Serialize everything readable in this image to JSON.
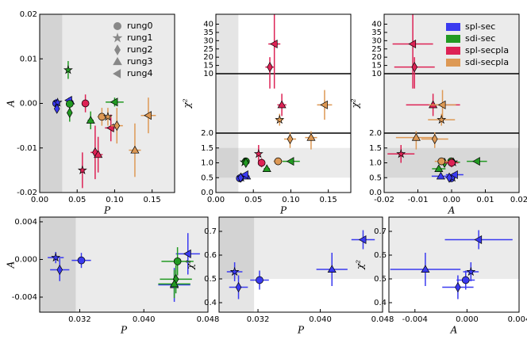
{
  "chart_data": [
    {
      "type": "scatter",
      "xlabel": "P",
      "ylabel": "A",
      "xlim": [
        0,
        0.18
      ],
      "ylim": [
        -0.02,
        0.02
      ],
      "xticks": [
        {
          "value": 0,
          "label": "0.00"
        },
        0.05,
        {
          "value": 0.1,
          "label": "0.10"
        },
        0.15
      ],
      "yticks": [
        -0.02,
        -0.01,
        {
          "value": 0,
          "label": "0.00"
        },
        0.01,
        0.02
      ],
      "background": "#ebebeb",
      "shade_x": [
        0,
        0.03
      ],
      "marker_legend": [
        "rung0",
        "rung1",
        "rung2",
        "rung3",
        "rung4"
      ],
      "series": [
        {
          "name": "spl-sec",
          "color": "#3a3af0",
          "markers": [
            "rung0",
            "rung1",
            "rung2",
            "rung3",
            "rung4"
          ],
          "x": [
            0.022,
            0.024,
            0.023,
            0.041,
            0.039
          ],
          "values": [
            0.0,
            0.0002,
            -0.0012,
            0.0005,
            0.0007
          ],
          "xerr": [
            0.002,
            0.002,
            0.002,
            0.004,
            0.003
          ],
          "yerr": [
            0.001,
            0.0007,
            0.0008,
            0.001,
            0.0006
          ]
        },
        {
          "name": "sdi-sec",
          "color": "#229a22",
          "markers": [
            "rung0",
            "rung1",
            "rung2",
            "rung3",
            "rung4"
          ],
          "x": [
            0.04,
            0.038,
            0.04,
            0.068,
            0.1
          ],
          "values": [
            -0.0001,
            0.0075,
            -0.0021,
            -0.0038,
            0.0003
          ],
          "xerr": [
            0.003,
            0.003,
            0.003,
            0.004,
            0.012
          ],
          "yerr": [
            0.0008,
            0.002,
            0.002,
            0.002,
            0.001
          ]
        },
        {
          "name": "spl-secpla",
          "color": "#dd2255",
          "markers": [
            "rung0",
            "rung1",
            "rung2",
            "rung3",
            "rung4"
          ],
          "x": [
            0.061,
            0.057,
            0.074,
            0.078,
            0.095
          ],
          "values": [
            0.0,
            -0.015,
            -0.011,
            -0.0115,
            -0.0055
          ],
          "xerr": [
            0.004,
            0.003,
            0.006,
            0.006,
            0.008
          ],
          "yerr": [
            0.002,
            0.004,
            0.006,
            0.004,
            0.003
          ]
        },
        {
          "name": "sdi-secpla",
          "color": "#dd9955",
          "markers": [
            "rung0",
            "rung1",
            "rung2",
            "rung3",
            "rung4"
          ],
          "x": [
            0.083,
            0.091,
            0.103,
            0.127,
            0.145
          ],
          "values": [
            -0.003,
            -0.003,
            -0.005,
            -0.0105,
            -0.0027
          ],
          "xerr": [
            0.006,
            0.005,
            0.008,
            0.008,
            0.01
          ],
          "yerr": [
            0.002,
            0.002,
            0.004,
            0.006,
            0.004
          ]
        }
      ]
    },
    {
      "type": "scatter",
      "xlabel": "P",
      "ylabel": "χ²",
      "xlim": [
        0,
        0.18
      ],
      "ylim": [
        0,
        46
      ],
      "ybreaks": [
        2,
        10
      ],
      "xticks": [
        {
          "value": 0,
          "label": "0.00"
        },
        0.05,
        {
          "value": 0.1,
          "label": "0.10"
        },
        0.15
      ],
      "yticks": [
        {
          "value": 0,
          "label": "0.0"
        },
        0.5,
        {
          "value": 1,
          "label": "1.0"
        },
        1.5,
        {
          "value": 2,
          "label": "2.0"
        },
        10,
        15,
        20,
        25,
        30,
        35,
        40
      ],
      "background": "#ffffff",
      "shade_x": [
        0,
        0.03
      ],
      "band_y": [
        0.5,
        1.5
      ],
      "hlines": [
        2,
        10
      ],
      "series": [
        {
          "name": "spl-sec",
          "color": "#3a3af0",
          "markers": [
            "rung0",
            "rung1",
            "rung2",
            "rung3",
            "rung4"
          ],
          "x": [
            0.032,
            0.034,
            0.033,
            0.041,
            0.039
          ],
          "values": [
            0.48,
            0.5,
            0.5,
            0.55,
            0.6
          ],
          "xerr": [
            0.002,
            0.002,
            0.002,
            0.004,
            0.003
          ],
          "yerr": [
            0.05,
            0.06,
            0.06,
            0.07,
            0.06
          ]
        },
        {
          "name": "sdi-sec",
          "color": "#229a22",
          "markers": [
            "rung0",
            "rung1",
            "rung2",
            "rung3",
            "rung4"
          ],
          "x": [
            0.04,
            0.038,
            0.04,
            0.068,
            0.1
          ],
          "values": [
            1.05,
            1.02,
            1.0,
            0.8,
            1.05
          ],
          "xerr": [
            0.003,
            0.003,
            0.003,
            0.004,
            0.012
          ],
          "yerr": [
            0.08,
            0.08,
            0.08,
            0.08,
            0.08
          ]
        },
        {
          "name": "spl-secpla",
          "color": "#dd2255",
          "markers": [
            "rung0",
            "rung1",
            "rung2",
            "rung3",
            "rung4"
          ],
          "x": [
            0.061,
            0.057,
            0.072,
            0.088,
            0.078
          ],
          "values": [
            1.0,
            1.3,
            14,
            5.8,
            28
          ],
          "xerr": [
            0.004,
            0.003,
            0.006,
            0.006,
            0.008
          ],
          "yerr": [
            0.15,
            0.3,
            6,
            1.5,
            20
          ]
        },
        {
          "name": "sdi-secpla",
          "color": "#dd9955",
          "markers": [
            "rung0",
            "rung1",
            "rung2",
            "rung3",
            "rung4"
          ],
          "x": [
            0.083,
            0.085,
            0.099,
            0.127,
            0.145
          ],
          "values": [
            1.05,
            3.8,
            1.8,
            1.85,
            5.8
          ],
          "xerr": [
            0.006,
            0.005,
            0.008,
            0.008,
            0.01
          ],
          "yerr": [
            0.1,
            0.8,
            0.3,
            0.4,
            2
          ]
        }
      ]
    },
    {
      "type": "scatter",
      "xlabel": "A",
      "ylabel": "χ²",
      "xlim": [
        -0.02,
        0.02
      ],
      "ylim": [
        0,
        46
      ],
      "ybreaks": [
        2,
        10
      ],
      "xticks": [
        -0.02,
        -0.01,
        {
          "value": 0,
          "label": "0.00"
        },
        0.01,
        0.02
      ],
      "yticks": [
        {
          "value": 0,
          "label": "0.0"
        },
        0.5,
        {
          "value": 1,
          "label": "1.0"
        },
        1.5,
        {
          "value": 2,
          "label": "2.0"
        },
        10,
        15,
        20,
        25,
        30,
        35,
        40
      ],
      "background": "#ebebeb",
      "band_y": [
        0.5,
        1.5
      ],
      "hlines": [
        2,
        10
      ],
      "legend": "upper right",
      "series": [
        {
          "name": "spl-sec",
          "color": "#3a3af0",
          "markers": [
            "rung0",
            "rung1",
            "rung2",
            "rung3",
            "rung4"
          ],
          "x": [
            -0.0001,
            0.0003,
            -0.0007,
            -0.0032,
            0.0009
          ],
          "values": [
            0.48,
            0.5,
            0.5,
            0.55,
            0.6
          ],
          "xerr": [
            0.0007,
            0.0006,
            0.0012,
            0.0027,
            0.0026
          ],
          "yerr": [
            0.05,
            0.06,
            0.06,
            0.07,
            0.06
          ]
        },
        {
          "name": "sdi-sec",
          "color": "#229a22",
          "markers": [
            "rung0",
            "rung1",
            "rung2",
            "rung3",
            "rung4"
          ],
          "x": [
            -0.0001,
            0.0005,
            -0.0021,
            -0.0038,
            0.0075
          ],
          "values": [
            1.05,
            1.02,
            1.0,
            0.8,
            1.05
          ],
          "xerr": [
            0.001,
            0.002,
            0.002,
            0.002,
            0.003
          ],
          "yerr": [
            0.08,
            0.08,
            0.08,
            0.08,
            0.08
          ]
        },
        {
          "name": "spl-secpla",
          "color": "#dd2255",
          "markers": [
            "rung0",
            "rung1",
            "rung2",
            "rung3",
            "rung4"
          ],
          "x": [
            0.0,
            -0.015,
            -0.011,
            -0.0055,
            -0.0115
          ],
          "values": [
            1.0,
            1.3,
            14,
            5.8,
            28
          ],
          "xerr": [
            0.002,
            0.004,
            0.006,
            0.008,
            0.006
          ],
          "yerr": [
            0.15,
            0.3,
            6,
            1.5,
            20
          ]
        },
        {
          "name": "sdi-secpla",
          "color": "#dd9955",
          "markers": [
            "rung0",
            "rung1",
            "rung2",
            "rung3",
            "rung4"
          ],
          "x": [
            -0.003,
            -0.003,
            -0.005,
            -0.0105,
            -0.0027
          ],
          "values": [
            1.05,
            3.8,
            1.8,
            1.85,
            5.8
          ],
          "xerr": [
            0.002,
            0.004,
            0.004,
            0.006,
            0.004
          ],
          "yerr": [
            0.1,
            0.8,
            0.3,
            0.4,
            2
          ]
        }
      ]
    },
    {
      "type": "scatter",
      "xlabel": "P",
      "ylabel": "A",
      "xlim": [
        0.027,
        0.048
      ],
      "ylim": [
        -0.0056,
        0.0045
      ],
      "xticks": [
        0.032,
        {
          "value": 0.04,
          "label": "0.040"
        },
        0.048
      ],
      "yticks": [
        -0.004,
        {
          "value": 0,
          "label": "0.000"
        },
        0.004
      ],
      "background": "#ebebeb",
      "shade_x": [
        0.027,
        0.0315
      ],
      "series": [
        {
          "name": "spl-sec",
          "color": "#3a3af0",
          "markers": [
            "rung0",
            "rung1",
            "rung2",
            "rung3",
            "rung4"
          ],
          "x": [
            0.0322,
            0.029,
            0.0295,
            0.0438,
            0.0455
          ],
          "values": [
            -0.0001,
            0.0002,
            -0.0011,
            -0.0027,
            0.0006
          ],
          "xerr": [
            0.0012,
            0.001,
            0.0012,
            0.002,
            0.0015
          ],
          "yerr": [
            0.0008,
            0.0006,
            0.0012,
            0.0018,
            0.0022
          ]
        },
        {
          "name": "sdi-sec",
          "color": "#229a22",
          "markers": [
            "rung0",
            "rung2",
            "rung3"
          ],
          "x": [
            0.0442,
            0.044,
            0.0438
          ],
          "values": [
            -0.0002,
            -0.0021,
            -0.0026
          ],
          "xerr": [
            0.002,
            0.002,
            0.002
          ],
          "yerr": [
            0.0015,
            0.0015,
            0.0015
          ]
        }
      ]
    },
    {
      "type": "scatter",
      "xlabel": "P",
      "ylabel": "χ²",
      "xlim": [
        0.027,
        0.048
      ],
      "ylim": [
        0.36,
        0.76
      ],
      "xticks": [
        0.032,
        {
          "value": 0.04,
          "label": "0.040"
        },
        0.048
      ],
      "yticks": [
        0.4,
        0.5,
        0.6,
        0.7
      ],
      "background": "#ffffff",
      "shade_x": [
        0.027,
        0.0315
      ],
      "band_y": [
        0.5,
        1.5
      ],
      "series": [
        {
          "name": "spl-sec",
          "color": "#3a3af0",
          "markers": [
            "rung0",
            "rung1",
            "rung2",
            "rung3",
            "rung4"
          ],
          "x": [
            0.0322,
            0.029,
            0.0295,
            0.0415,
            0.0455
          ],
          "values": [
            0.495,
            0.53,
            0.465,
            0.54,
            0.665
          ],
          "xerr": [
            0.0012,
            0.001,
            0.0012,
            0.002,
            0.0015
          ],
          "yerr": [
            0.04,
            0.04,
            0.05,
            0.07,
            0.04
          ]
        }
      ]
    },
    {
      "type": "scatter",
      "xlabel": "A",
      "ylabel": "χ²",
      "xlim": [
        -0.006,
        0.004
      ],
      "ylim": [
        0.36,
        0.76
      ],
      "xticks": [
        -0.004,
        {
          "value": 0,
          "label": "0.000"
        },
        0.004
      ],
      "yticks": [
        0.4,
        0.5,
        0.6,
        0.7
      ],
      "background": "#ffffff",
      "band_y": [
        0.5,
        1.5
      ],
      "series": [
        {
          "name": "spl-sec",
          "color": "#3a3af0",
          "markers": [
            "rung0",
            "rung1",
            "rung2",
            "rung3",
            "rung4"
          ],
          "x": [
            -0.0001,
            0.0003,
            -0.0007,
            -0.0032,
            0.0009
          ],
          "values": [
            0.495,
            0.53,
            0.465,
            0.54,
            0.665
          ],
          "xerr": [
            0.0007,
            0.0006,
            0.0012,
            0.0027,
            0.0026
          ],
          "yerr": [
            0.04,
            0.04,
            0.05,
            0.07,
            0.04
          ]
        }
      ]
    }
  ]
}
